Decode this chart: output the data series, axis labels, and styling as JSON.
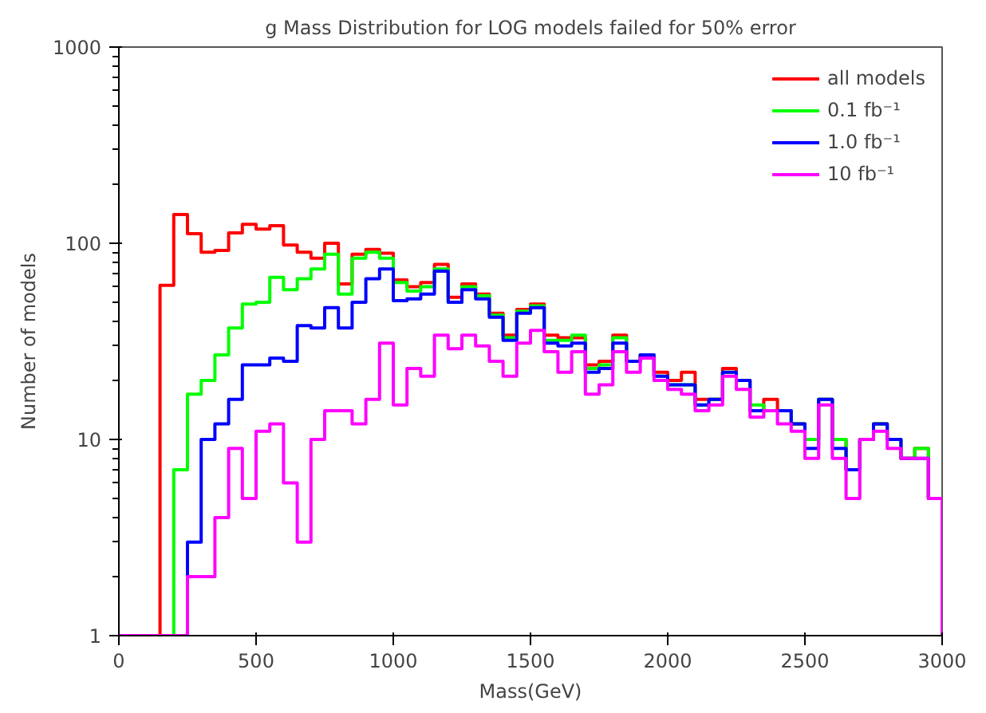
{
  "chart_data": {
    "type": "histogram",
    "title": "g Mass Distribution for LOG models failed for 50% error",
    "xlabel": "Mass(GeV)",
    "ylabel": "Number of models",
    "bins": [
      0,
      50,
      100,
      150,
      200,
      250,
      300,
      350,
      400,
      450,
      500,
      550,
      600,
      650,
      700,
      750,
      800,
      850,
      900,
      950,
      1000,
      1050,
      1100,
      1150,
      1200,
      1250,
      1300,
      1350,
      1400,
      1450,
      1500,
      1550,
      1600,
      1650,
      1700,
      1750,
      1800,
      1850,
      1900,
      1950,
      2000,
      2050,
      2100,
      2150,
      2200,
      2250,
      2300,
      2350,
      2400,
      2450,
      2500,
      2550,
      2600,
      2650,
      2700,
      2750,
      2800,
      2850,
      2900,
      2950,
      3000
    ],
    "series": [
      {
        "name": "all models",
        "color": "#ff0000",
        "values": [
          null,
          null,
          null,
          61,
          140,
          112,
          90,
          92,
          113,
          125,
          118,
          123,
          98,
          90,
          84,
          100,
          62,
          88,
          93,
          89,
          65,
          60,
          63,
          78,
          53,
          62,
          55,
          44,
          34,
          46,
          49,
          34,
          33,
          33,
          24,
          25,
          34,
          25,
          27,
          22,
          20,
          22,
          16,
          16,
          23,
          20,
          14,
          16,
          14,
          12,
          10,
          16,
          10,
          7,
          10,
          12,
          10,
          8,
          9,
          5
        ]
      },
      {
        "name": "0.1 fb⁻¹",
        "color": "#00ff00",
        "values": [
          null,
          null,
          null,
          null,
          7,
          17,
          20,
          27,
          37,
          49,
          50,
          67,
          58,
          66,
          74,
          88,
          55,
          84,
          90,
          84,
          63,
          57,
          60,
          74,
          50,
          60,
          54,
          43,
          33,
          45,
          48,
          32,
          32,
          34,
          23,
          24,
          33,
          25,
          27,
          21,
          19,
          19,
          15,
          16,
          22,
          20,
          15,
          14,
          14,
          12,
          10,
          16,
          10,
          7,
          10,
          12,
          10,
          8,
          9,
          5
        ]
      },
      {
        "name": "1.0 fb⁻¹",
        "color": "#0000ff",
        "values": [
          null,
          null,
          null,
          null,
          null,
          3,
          10,
          12,
          16,
          24,
          24,
          26,
          25,
          38,
          37,
          47,
          37,
          50,
          66,
          74,
          51,
          52,
          55,
          72,
          50,
          58,
          52,
          42,
          32,
          44,
          47,
          31,
          30,
          31,
          22,
          23,
          31,
          25,
          27,
          21,
          19,
          19,
          15,
          16,
          22,
          20,
          14,
          14,
          14,
          12,
          9,
          16,
          9,
          7,
          10,
          12,
          10,
          8,
          8,
          5
        ]
      },
      {
        "name": "10 fb⁻¹",
        "color": "#ff00ff",
        "values": [
          null,
          null,
          null,
          null,
          null,
          2,
          2,
          4,
          9,
          5,
          11,
          12,
          6,
          3,
          10,
          14,
          14,
          12,
          16,
          31,
          15,
          23,
          21,
          34,
          29,
          34,
          30,
          25,
          21,
          31,
          36,
          28,
          22,
          28,
          17,
          19,
          28,
          22,
          26,
          20,
          18,
          17,
          14,
          15,
          21,
          18,
          13,
          14,
          12,
          11,
          8,
          15,
          8,
          5,
          10,
          11,
          9,
          8,
          8,
          5
        ]
      }
    ],
    "xlim": [
      0,
      3000
    ],
    "xticks": [
      0,
      500,
      1000,
      1500,
      2000,
      2500,
      3000
    ],
    "ylim": [
      1,
      1000
    ],
    "yticks": [
      1,
      10,
      100,
      1000
    ],
    "log": "y",
    "grid": false,
    "legend": "top right"
  }
}
